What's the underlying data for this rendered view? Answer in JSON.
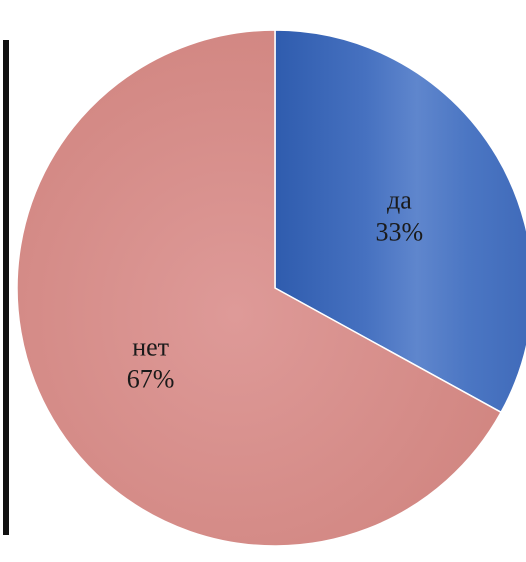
{
  "chart_data": {
    "type": "pie",
    "categories": [
      "да",
      "нет"
    ],
    "values": [
      33,
      67
    ],
    "labels": [
      {
        "name": "да",
        "percent": "33%"
      },
      {
        "name": "нет",
        "percent": "67%"
      }
    ],
    "colors": {
      "да": "#3d66b4",
      "нет": "#d9918f"
    },
    "title": "",
    "legend": "none"
  },
  "frame": {
    "left_border_color": "#111111"
  }
}
